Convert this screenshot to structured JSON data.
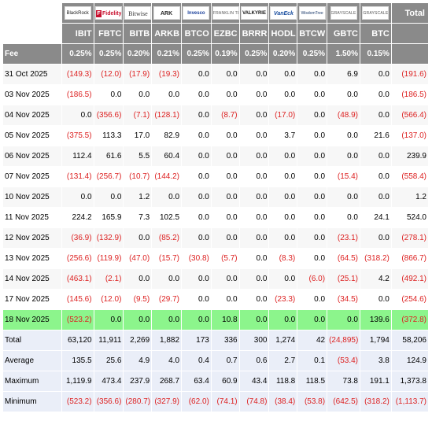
{
  "header": {
    "logos": [
      {
        "text": "BlackRock",
        "icon": "blackrock-logo"
      },
      {
        "text": "Fidelity",
        "icon": "fidelity-logo"
      },
      {
        "text": "Bitwise",
        "icon": "bitwise-logo"
      },
      {
        "text": "ARK",
        "icon": "ark-logo"
      },
      {
        "text": "Invesco",
        "icon": "invesco-logo"
      },
      {
        "text": "FRANKLIN TEMPLETON",
        "icon": "franklin-logo"
      },
      {
        "text": "VALKYRIE",
        "icon": "valkyrie-logo"
      },
      {
        "text": "VanEck",
        "icon": "vaneck-logo"
      },
      {
        "text": "WisdomTree",
        "icon": "wisdomtree-logo"
      },
      {
        "text": "GRAYSCALE",
        "icon": "grayscale-logo"
      },
      {
        "text": "GRAYSCALE",
        "icon": "grayscale-logo"
      }
    ],
    "total_label": "Total",
    "tickers": [
      "IBIT",
      "FBTC",
      "BITB",
      "ARKB",
      "BTCO",
      "EZBC",
      "BRRR",
      "HODL",
      "BTCW",
      "GBTC",
      "BTC"
    ],
    "fee_label": "Fee",
    "fees": [
      "0.25%",
      "0.25%",
      "0.20%",
      "0.21%",
      "0.25%",
      "0.19%",
      "0.25%",
      "0.20%",
      "0.25%",
      "1.50%",
      "0.15%"
    ]
  },
  "rows": [
    {
      "date": "31 Oct 2025",
      "values": [
        "(149.3)",
        "(12.0)",
        "(17.9)",
        "(19.3)",
        "0.0",
        "0.0",
        "0.0",
        "0.0",
        "0.0",
        "6.9",
        "0.0"
      ],
      "total": "(191.6)"
    },
    {
      "date": "03 Nov 2025",
      "values": [
        "(186.5)",
        "0.0",
        "0.0",
        "0.0",
        "0.0",
        "0.0",
        "0.0",
        "0.0",
        "0.0",
        "0.0",
        "0.0"
      ],
      "total": "(186.5)"
    },
    {
      "date": "04 Nov 2025",
      "values": [
        "0.0",
        "(356.6)",
        "(7.1)",
        "(128.1)",
        "0.0",
        "(8.7)",
        "0.0",
        "(17.0)",
        "0.0",
        "(48.9)",
        "0.0"
      ],
      "total": "(566.4)"
    },
    {
      "date": "05 Nov 2025",
      "values": [
        "(375.5)",
        "113.3",
        "17.0",
        "82.9",
        "0.0",
        "0.0",
        "0.0",
        "3.7",
        "0.0",
        "0.0",
        "21.6"
      ],
      "total": "(137.0)"
    },
    {
      "date": "06 Nov 2025",
      "values": [
        "112.4",
        "61.6",
        "5.5",
        "60.4",
        "0.0",
        "0.0",
        "0.0",
        "0.0",
        "0.0",
        "0.0",
        "0.0"
      ],
      "total": "239.9"
    },
    {
      "date": "07 Nov 2025",
      "values": [
        "(131.4)",
        "(256.7)",
        "(10.7)",
        "(144.2)",
        "0.0",
        "0.0",
        "0.0",
        "0.0",
        "0.0",
        "(15.4)",
        "0.0"
      ],
      "total": "(558.4)"
    },
    {
      "date": "10 Nov 2025",
      "values": [
        "0.0",
        "0.0",
        "1.2",
        "0.0",
        "0.0",
        "0.0",
        "0.0",
        "0.0",
        "0.0",
        "0.0",
        "0.0"
      ],
      "total": "1.2"
    },
    {
      "date": "11 Nov 2025",
      "values": [
        "224.2",
        "165.9",
        "7.3",
        "102.5",
        "0.0",
        "0.0",
        "0.0",
        "0.0",
        "0.0",
        "0.0",
        "24.1"
      ],
      "total": "524.0"
    },
    {
      "date": "12 Nov 2025",
      "values": [
        "(36.9)",
        "(132.9)",
        "0.0",
        "(85.2)",
        "0.0",
        "0.0",
        "0.0",
        "0.0",
        "0.0",
        "(23.1)",
        "0.0"
      ],
      "total": "(278.1)"
    },
    {
      "date": "13 Nov 2025",
      "values": [
        "(256.6)",
        "(119.9)",
        "(47.0)",
        "(15.7)",
        "(30.8)",
        "(5.7)",
        "0.0",
        "(8.3)",
        "0.0",
        "(64.5)",
        "(318.2)"
      ],
      "total": "(866.7)"
    },
    {
      "date": "14 Nov 2025",
      "values": [
        "(463.1)",
        "(2.1)",
        "0.0",
        "0.0",
        "0.0",
        "0.0",
        "0.0",
        "0.0",
        "(6.0)",
        "(25.1)",
        "4.2"
      ],
      "total": "(492.1)"
    },
    {
      "date": "17 Nov 2025",
      "values": [
        "(145.6)",
        "(12.0)",
        "(9.5)",
        "(29.7)",
        "0.0",
        "0.0",
        "0.0",
        "(23.3)",
        "0.0",
        "(34.5)",
        "0.0"
      ],
      "total": "(254.6)"
    },
    {
      "date": "18 Nov 2025",
      "values": [
        "(523.2)",
        "0.0",
        "0.0",
        "0.0",
        "0.0",
        "10.8",
        "0.0",
        "0.0",
        "0.0",
        "0.0",
        "139.6"
      ],
      "total": "(372.8)",
      "highlight": true
    }
  ],
  "stats": [
    {
      "label": "Total",
      "values": [
        "63,120",
        "11,911",
        "2,269",
        "1,882",
        "173",
        "336",
        "300",
        "1,274",
        "42",
        "(24,895)",
        "1,794"
      ],
      "total": "58,206"
    },
    {
      "label": "Average",
      "values": [
        "135.5",
        "25.6",
        "4.9",
        "4.0",
        "0.4",
        "0.7",
        "0.6",
        "2.7",
        "0.1",
        "(53.4)",
        "3.8"
      ],
      "total": "124.9"
    },
    {
      "label": "Maximum",
      "values": [
        "1,119.9",
        "473.4",
        "237.9",
        "268.7",
        "63.4",
        "60.9",
        "43.4",
        "118.8",
        "118.5",
        "73.8",
        "191.1"
      ],
      "total": "1,373.8"
    },
    {
      "label": "Minimum",
      "values": [
        "(523.2)",
        "(356.6)",
        "(280.7)",
        "(327.9)",
        "(62.0)",
        "(74.1)",
        "(74.8)",
        "(38.4)",
        "(53.8)",
        "(642.5)",
        "(318.2)"
      ],
      "total": "(1,113.7)"
    }
  ],
  "colors": {
    "header_bg": "#8a8a8a",
    "negative": "#dd2222",
    "highlight": "#8cf58c",
    "stats_bg": "#eaeef8"
  }
}
